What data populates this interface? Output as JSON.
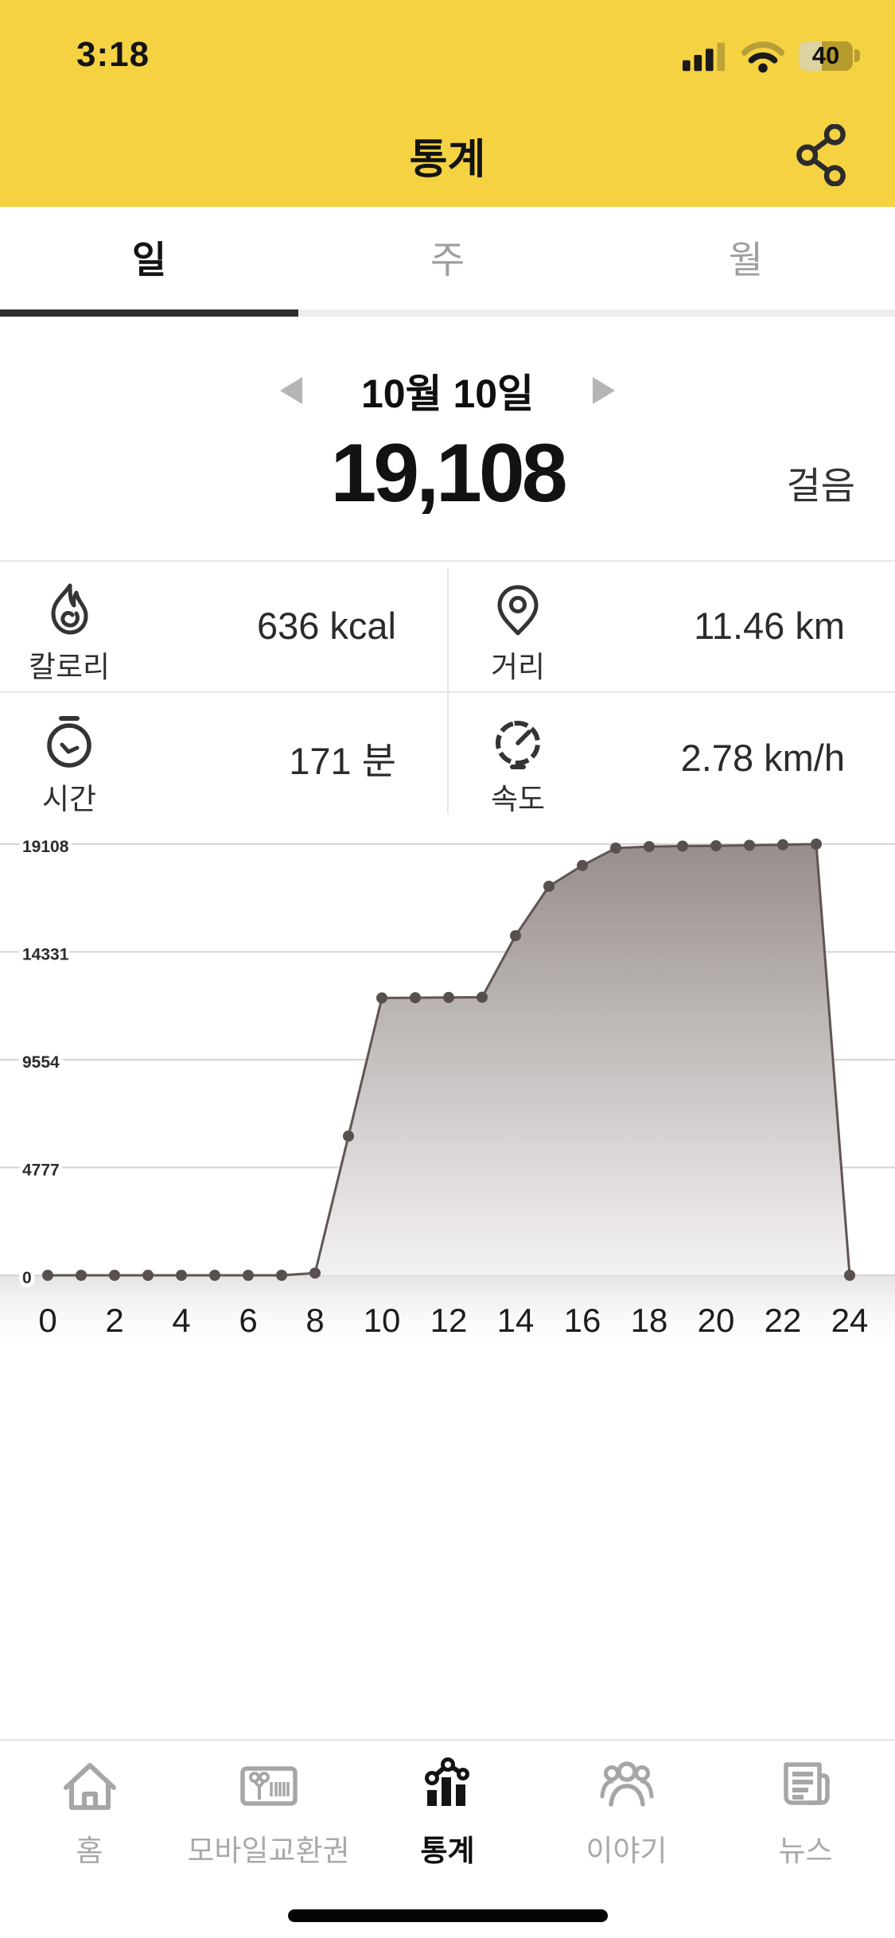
{
  "status_bar": {
    "time": "3:18",
    "battery_percent": "40"
  },
  "header": {
    "title": "통계"
  },
  "tabs": {
    "items": [
      {
        "label": "일",
        "active": true
      },
      {
        "label": "주",
        "active": false
      },
      {
        "label": "월",
        "active": false
      }
    ]
  },
  "date_nav": {
    "date": "10월 10일"
  },
  "steps": {
    "value": "19,108",
    "unit": "걸음"
  },
  "stats": [
    {
      "icon": "flame-icon",
      "label": "칼로리",
      "value": "636 kcal"
    },
    {
      "icon": "pin-icon",
      "label": "거리",
      "value": "11.46 km"
    },
    {
      "icon": "stopwatch-icon",
      "label": "시간",
      "value": "171 분"
    },
    {
      "icon": "speedometer-icon",
      "label": "속도",
      "value": "2.78 km/h"
    }
  ],
  "chart_data": {
    "type": "area",
    "title": "",
    "xlabel": "",
    "ylabel": "",
    "x": [
      0,
      1,
      2,
      3,
      4,
      5,
      6,
      7,
      8,
      9,
      10,
      11,
      12,
      13,
      14,
      15,
      16,
      17,
      18,
      19,
      20,
      21,
      22,
      23,
      24
    ],
    "values": [
      0,
      0,
      0,
      0,
      0,
      0,
      0,
      0,
      100,
      6170,
      12290,
      12300,
      12310,
      12320,
      15050,
      17240,
      18160,
      18930,
      19000,
      19020,
      19035,
      19055,
      19080,
      19108,
      0
    ],
    "xlim": [
      0,
      24
    ],
    "ylim": [
      0,
      19108
    ],
    "x_tick_labels": [
      "0",
      "2",
      "4",
      "6",
      "8",
      "10",
      "12",
      "14",
      "16",
      "18",
      "20",
      "22",
      "24"
    ],
    "y_ticks": [
      0,
      4777,
      9554,
      14331,
      19108
    ],
    "y_tick_labels": [
      "0",
      "4777",
      "9554",
      "14331",
      "19108"
    ],
    "grid": "horizontal",
    "legend": "none"
  },
  "tab_bar": {
    "items": [
      {
        "icon": "home-icon",
        "label": "홈",
        "active": false
      },
      {
        "icon": "voucher-icon",
        "label": "모바일교환권",
        "active": false
      },
      {
        "icon": "stats-icon",
        "label": "통계",
        "active": true
      },
      {
        "icon": "people-icon",
        "label": "이야기",
        "active": false
      },
      {
        "icon": "news-icon",
        "label": "뉴스",
        "active": false
      }
    ]
  },
  "colors": {
    "brand_yellow": "#F4D242",
    "active_text": "#111111",
    "inactive_text": "#a9a9a9",
    "divider": "#e8e8e8",
    "grid_line": "#d7d4d3",
    "chart_line": "#5f5553",
    "chart_dot": "#57504e",
    "chart_fill_top": "#918886",
    "chart_fill_bottom": "#f3f1f0"
  }
}
